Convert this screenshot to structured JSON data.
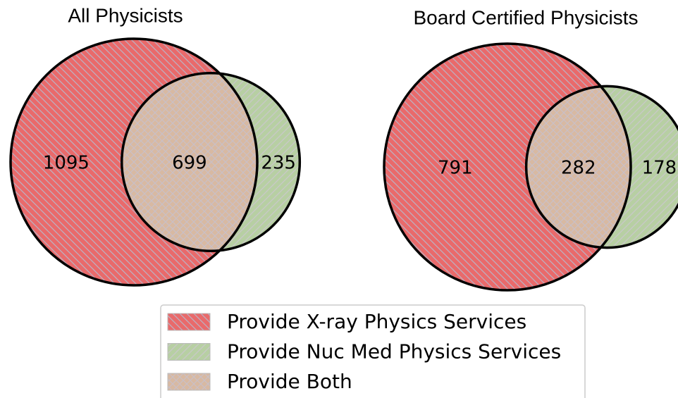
{
  "chart_data": [
    {
      "type": "venn",
      "title": "All Physicists",
      "values": [
        1095,
        235,
        699
      ]
    },
    {
      "type": "venn",
      "title": "Board Certified Physicists",
      "values": [
        791,
        178,
        282
      ]
    }
  ],
  "legend": {
    "items": [
      {
        "name": "Provide X-ray Physics Services",
        "color": "#e96a6b"
      },
      {
        "name": "Provide Nuc Med Physics Services",
        "color": "#b7cfa3"
      },
      {
        "name": "Provide Both",
        "color": "#d8b9a2"
      }
    ]
  }
}
